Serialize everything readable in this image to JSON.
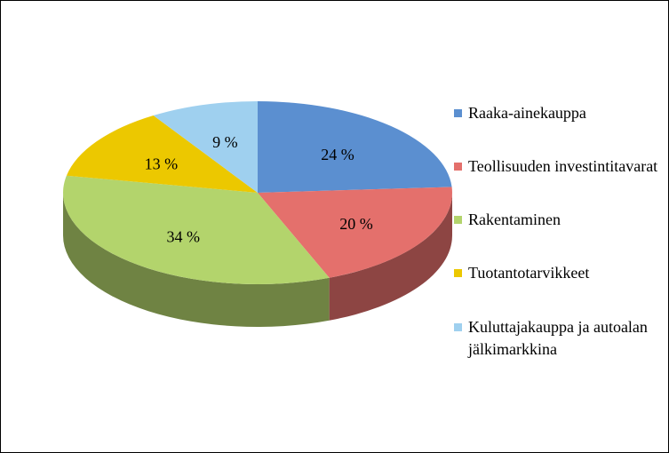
{
  "chart_data": {
    "type": "pie3d",
    "categories": [
      "Raaka-ainekauppa",
      "Teollisuuden investintitavarat",
      "Rakentaminen",
      "Tuotantotarvikkeet",
      "Kuluttajakauppa ja autoalan jälkimarkkina"
    ],
    "values": [
      24,
      20,
      34,
      13,
      9
    ],
    "value_labels": [
      "24 %",
      "20 %",
      "34 %",
      "13 %",
      "9 %"
    ],
    "colors": [
      "#5b8fd0",
      "#e4706c",
      "#b3d46c",
      "#ecc800",
      "#9fd0ef"
    ],
    "legend": "right"
  }
}
